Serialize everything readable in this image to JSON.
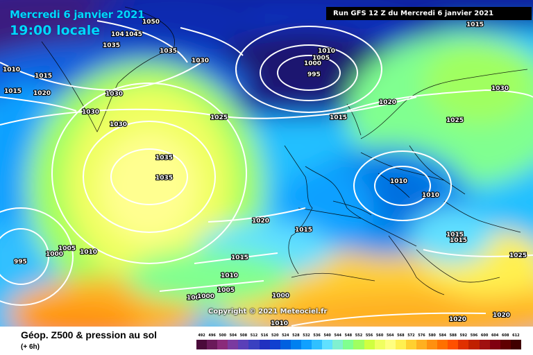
{
  "header": {
    "date": "Mercredi 6 janvier 2021",
    "time": "19:00 locale",
    "run": "Run GFS 12 Z du Mercredi 6 janvier 2021"
  },
  "copyright": "Copyright © 2021 Meteociel.fr",
  "legend": {
    "title": "Géop. Z500 & pression au sol",
    "subtitle": "(+ 6h)",
    "scale_values": [
      "492",
      "496",
      "500",
      "504",
      "508",
      "512",
      "516",
      "520",
      "524",
      "528",
      "532",
      "536",
      "540",
      "544",
      "548",
      "552",
      "556",
      "560",
      "564",
      "568",
      "572",
      "576",
      "580",
      "584",
      "588",
      "592",
      "596",
      "600",
      "604",
      "608",
      "612"
    ],
    "scale_colors": [
      "#4a0a3a",
      "#6a1a5a",
      "#8a2a7a",
      "#7a3aa0",
      "#5a40b8",
      "#3a40c0",
      "#2030c0",
      "#1040d0",
      "#0060e0",
      "#0080f0",
      "#10a0ff",
      "#30c0ff",
      "#60e0ff",
      "#80f0d0",
      "#80ff90",
      "#a0ff60",
      "#d0ff40",
      "#f0ff60",
      "#ffff80",
      "#fff050",
      "#ffd030",
      "#ffb020",
      "#ff9010",
      "#ff7000",
      "#ff5000",
      "#e03000",
      "#c02000",
      "#a01010",
      "#800010",
      "#600000",
      "#400000"
    ]
  },
  "isobars": [
    {
      "label": "1050"
    },
    {
      "label": "1045"
    },
    {
      "label": "104"
    },
    {
      "label": "1035"
    },
    {
      "label": "1035"
    },
    {
      "label": "1030"
    },
    {
      "label": "1010"
    },
    {
      "label": "1015"
    },
    {
      "label": "1015"
    },
    {
      "label": "1020"
    },
    {
      "label": "1030"
    },
    {
      "label": "1030"
    },
    {
      "label": "1030"
    },
    {
      "label": "1025"
    },
    {
      "label": "1035"
    },
    {
      "label": "1035"
    },
    {
      "label": "1010"
    },
    {
      "label": "1005"
    },
    {
      "label": "1000"
    },
    {
      "label": "995"
    },
    {
      "label": "1015"
    },
    {
      "label": "1020"
    },
    {
      "label": "1015"
    },
    {
      "label": "1030"
    },
    {
      "label": "1025"
    },
    {
      "label": "1010"
    },
    {
      "label": "1010"
    },
    {
      "label": "1020"
    },
    {
      "label": "1015"
    },
    {
      "label": "1015"
    },
    {
      "label": "1015"
    },
    {
      "label": "1015"
    },
    {
      "label": "1025"
    },
    {
      "label": "995"
    },
    {
      "label": "1000"
    },
    {
      "label": "1005"
    },
    {
      "label": "1010"
    },
    {
      "label": "1010"
    },
    {
      "label": "1005"
    },
    {
      "label": "1000"
    },
    {
      "label": "100"
    },
    {
      "label": "1000"
    },
    {
      "label": "1010"
    },
    {
      "label": "1020"
    },
    {
      "label": "1020"
    }
  ]
}
